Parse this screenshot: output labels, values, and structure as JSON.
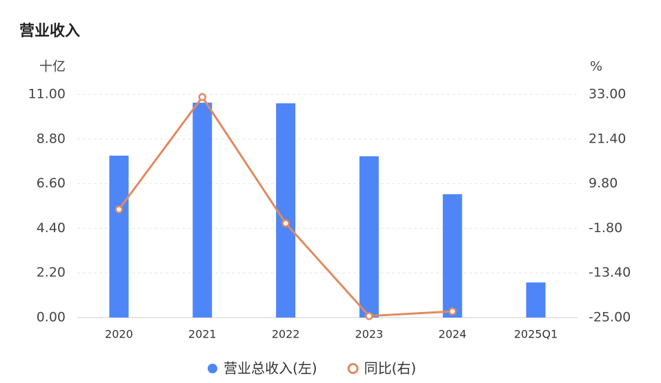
{
  "chart_data": {
    "type": "bar-line",
    "title": "营业收入",
    "y_label": "十亿",
    "y2_label": "%",
    "categories": [
      "2020",
      "2021",
      "2022",
      "2023",
      "2024",
      "2025Q1"
    ],
    "series": [
      {
        "name": "营业总收入(左)",
        "type": "bar",
        "color": "#4f86f7",
        "values": [
          7.98,
          10.59,
          10.56,
          7.95,
          6.08,
          1.73
        ]
      },
      {
        "name": "同比(右)",
        "type": "line",
        "axis": "y2",
        "color": "#e08a5e",
        "values": [
          3.1,
          32.3,
          -0.5,
          -24.6,
          -23.4,
          null
        ]
      }
    ],
    "ylim": [
      0,
      11
    ],
    "yticks": [
      {
        "value": 0,
        "label": "0.00"
      },
      {
        "value": 2.2,
        "label": "2.20"
      },
      {
        "value": 4.4,
        "label": "4.40"
      },
      {
        "value": 6.6,
        "label": "6.60"
      },
      {
        "value": 8.8,
        "label": "8.80"
      },
      {
        "value": 11,
        "label": "11.00"
      }
    ],
    "y2lim": [
      -25,
      33
    ],
    "y2ticks": [
      {
        "value": -25,
        "label": "-25.00"
      },
      {
        "value": -13.4,
        "label": "-13.40"
      },
      {
        "value": -1.8,
        "label": "-1.80"
      },
      {
        "value": 9.8,
        "label": "9.80"
      },
      {
        "value": 21.4,
        "label": "21.40"
      },
      {
        "value": 33,
        "label": "33.00"
      }
    ],
    "grid": true
  }
}
